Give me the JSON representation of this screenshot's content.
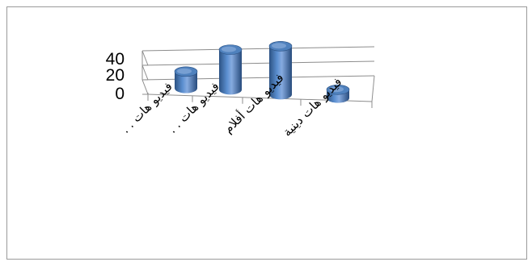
{
  "chart_data": {
    "type": "bar",
    "style": "3d-cylinder",
    "categories": [
      "فيديو هات . .",
      "فيديو هات . .",
      "فيديو هات أفلام",
      "فيديو هات دينية"
    ],
    "values": [
      10,
      24,
      29,
      5
    ],
    "yticks": [
      "40",
      "20",
      "0"
    ],
    "ylim": [
      0,
      40
    ],
    "grid": true,
    "legend": "none",
    "colors": {
      "bar": "#4f81bd",
      "bar_dark": "#2c5283",
      "bar_light": "#a9c4ea",
      "grid": "#8c8c8c",
      "frame": "#9a9a9a"
    }
  }
}
